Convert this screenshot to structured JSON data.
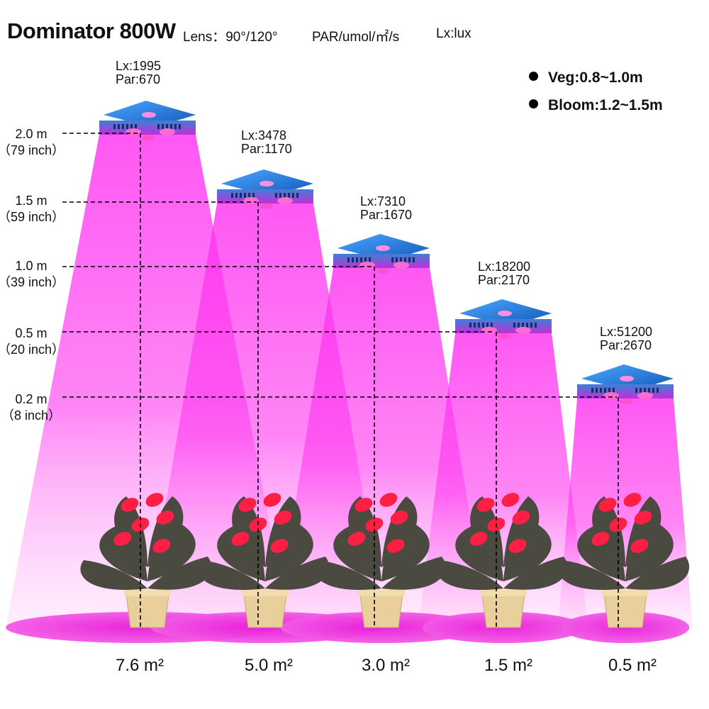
{
  "header": {
    "title": "Dominator 800W",
    "lens": "Lens：90°/120°",
    "par_unit": "PAR/umol/㎡/s",
    "lux_unit": "Lx:lux"
  },
  "legend": [
    {
      "label": "Veg:0.8~1.0m"
    },
    {
      "label": "Bloom:1.2~1.5m"
    }
  ],
  "heights": [
    {
      "m": "2.0 m",
      "inch": "（79 inch）"
    },
    {
      "m": "1.5 m",
      "inch": "（59 inch）"
    },
    {
      "m": "1.0 m",
      "inch": "（39 inch）"
    },
    {
      "m": "0.5 m",
      "inch": "（20 inch）"
    },
    {
      "m": "0.2 m",
      "inch": "（8 inch）"
    }
  ],
  "readings": [
    {
      "lx": "Lx:1995",
      "par": "Par:670",
      "area": "7.6 m²"
    },
    {
      "lx": "Lx:3478",
      "par": "Par:1170",
      "area": "5.0 m²"
    },
    {
      "lx": "Lx:7310",
      "par": "Par:1670",
      "area": "3.0 m²"
    },
    {
      "lx": "Lx:18200",
      "par": "Par:2170",
      "area": "1.5 m²"
    },
    {
      "lx": "Lx:51200",
      "par": "Par:2670",
      "area": "0.5 m²"
    }
  ],
  "colors": {
    "beam": "#ff22ee",
    "beam_fade": "#ffd6fb",
    "ground": "#ee22dd",
    "light_body": "#1e7ad6",
    "pot": "#e9cf9c",
    "flower": "#ff1f44",
    "leaf": "#4a4a40"
  }
}
